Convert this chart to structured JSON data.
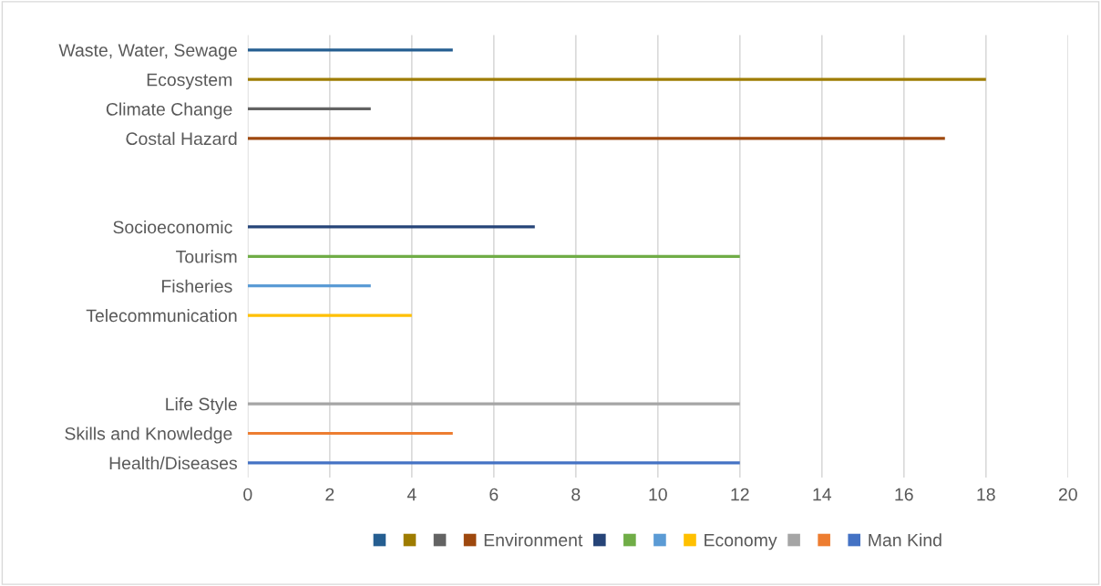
{
  "chart_data": {
    "type": "bar",
    "orientation": "horizontal",
    "categories": [
      "Waste, Water, Sewage",
      "Ecosystem ",
      "Climate Change ",
      "Costal Hazard",
      null,
      null,
      "Socioeconomic ",
      "Tourism",
      "Fisheries ",
      "Telecommunication",
      null,
      null,
      "Life Style",
      "Skills and Knowledge ",
      "Health/Diseases"
    ],
    "series": [
      {
        "color": "#255e91",
        "values": [
          5,
          null,
          null,
          null,
          null,
          null,
          null,
          null,
          null,
          null,
          null,
          null,
          null,
          null,
          null
        ]
      },
      {
        "color": "#9e7c00",
        "values": [
          null,
          18,
          null,
          null,
          null,
          null,
          null,
          null,
          null,
          null,
          null,
          null,
          null,
          null,
          null
        ]
      },
      {
        "color": "#636363",
        "values": [
          null,
          null,
          3,
          null,
          null,
          null,
          null,
          null,
          null,
          null,
          null,
          null,
          null,
          null,
          null
        ]
      },
      {
        "name": "Environment",
        "color": "#9e480e",
        "values": [
          null,
          null,
          null,
          17,
          null,
          null,
          null,
          null,
          null,
          null,
          null,
          null,
          null,
          null,
          null
        ]
      },
      {
        "color": "#264478",
        "values": [
          null,
          null,
          null,
          null,
          null,
          null,
          7,
          null,
          null,
          null,
          null,
          null,
          null,
          null,
          null
        ]
      },
      {
        "color": "#70ad47",
        "values": [
          null,
          null,
          null,
          null,
          null,
          null,
          null,
          12,
          null,
          null,
          null,
          null,
          null,
          null,
          null
        ]
      },
      {
        "color": "#5b9bd5",
        "values": [
          null,
          null,
          null,
          null,
          null,
          null,
          null,
          null,
          3,
          null,
          null,
          null,
          null,
          null,
          null
        ]
      },
      {
        "name": "Economy",
        "color": "#ffc000",
        "values": [
          null,
          null,
          null,
          null,
          null,
          null,
          null,
          null,
          null,
          4,
          null,
          null,
          null,
          null,
          null
        ]
      },
      {
        "color": "#a5a5a5",
        "values": [
          null,
          null,
          null,
          null,
          null,
          null,
          null,
          null,
          null,
          null,
          null,
          null,
          12,
          null,
          null
        ]
      },
      {
        "color": "#ed7d31",
        "values": [
          null,
          null,
          null,
          null,
          null,
          null,
          null,
          null,
          null,
          null,
          null,
          null,
          null,
          5,
          null
        ]
      },
      {
        "name": "Man Kind",
        "color": "#4472c4",
        "values": [
          null,
          null,
          null,
          null,
          null,
          null,
          null,
          null,
          null,
          null,
          null,
          null,
          null,
          null,
          12
        ]
      }
    ],
    "xlim": [
      0,
      20
    ],
    "xticks": [
      0,
      2,
      4,
      6,
      8,
      10,
      12,
      14,
      16,
      18,
      20
    ],
    "grid": "x",
    "legend": "bottom"
  }
}
